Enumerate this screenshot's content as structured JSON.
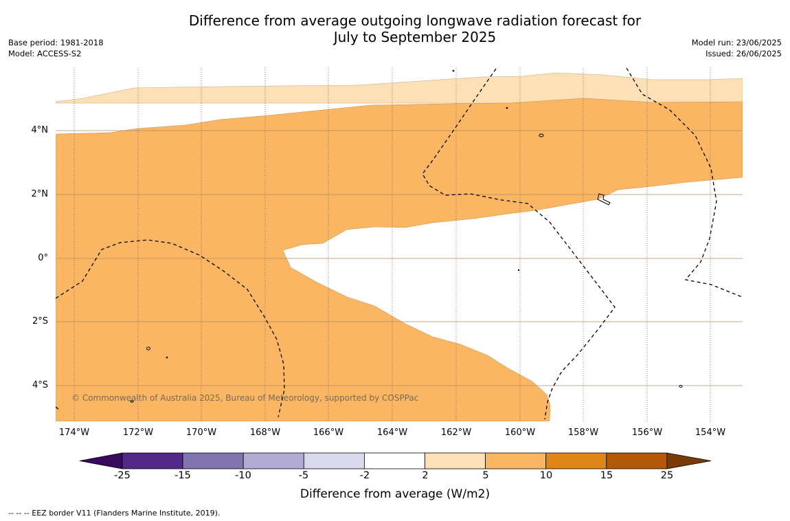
{
  "title": {
    "line1": "Difference from average outgoing longwave radiation forecast for",
    "line2": "July to September 2025"
  },
  "meta": {
    "base_period": "Base period: 1981-2018",
    "model": "Model: ACCESS-S2",
    "model_run": "Model run: 23/06/2025",
    "issued": "Issued: 26/06/2025"
  },
  "map": {
    "lat_labels": [
      "4°N",
      "2°N",
      "0°",
      "2°S",
      "4°S"
    ],
    "lon_labels": [
      "174°W",
      "172°W",
      "170°W",
      "168°W",
      "166°W",
      "164°W",
      "162°W",
      "160°W",
      "158°W",
      "156°W",
      "154°W"
    ],
    "copyright": "© Commonwealth of Australia 2025, Bureau of Meteorology, supported by COSPPac",
    "colors": {
      "light_orange": "#fde0b5",
      "mid_orange": "#fbb663"
    }
  },
  "colorbar": {
    "title": "Difference from average (W/m2)",
    "labels": [
      "-25",
      "-15",
      "-10",
      "-5",
      "-2",
      "2",
      "5",
      "10",
      "15",
      "25"
    ],
    "colors": [
      "#3a0a5e",
      "#522987",
      "#7f74ad",
      "#b2acd5",
      "#d9d9ec",
      "#ffffff",
      "#fde0b5",
      "#fbb663",
      "#e08619",
      "#b35807",
      "#7a3a05"
    ]
  },
  "footnote": "--  --  -- EEZ border V11 (Flanders Marine Institute, 2019)."
}
